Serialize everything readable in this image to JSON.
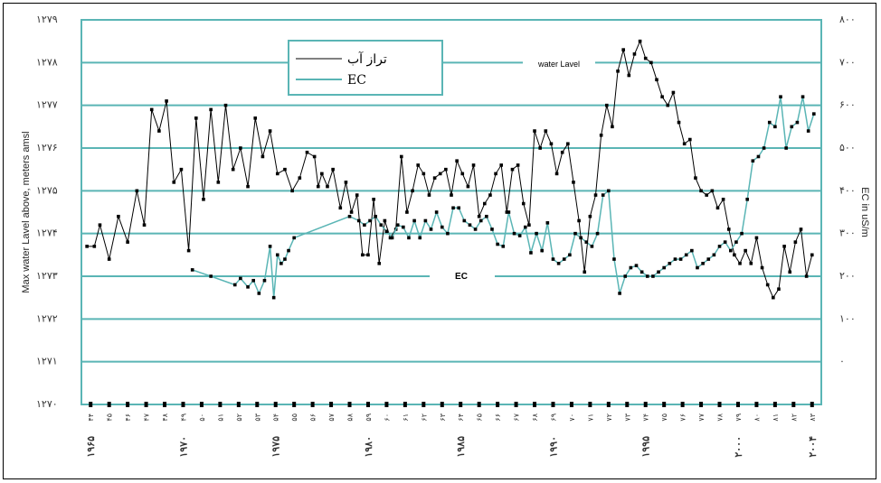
{
  "chart_data": {
    "type": "line",
    "left_axis": {
      "label": "Max water Lavel above, meters amsl",
      "ticks": [
        "۱۲۷۰",
        "۱۲۷۱",
        "۱۲۷۲",
        "۱۲۷۳",
        "۱۲۷۴",
        "۱۲۷۵",
        "۱۲۷۶",
        "۱۲۷۷",
        "۱۲۷۸",
        "۱۲۷۹"
      ],
      "ylim": [
        1270,
        1279
      ]
    },
    "right_axis": {
      "label": "EC in uS/m",
      "ticks": [
        "۰",
        "۱۰۰",
        "۲۰۰",
        "۳۰۰",
        "۴۰۰",
        "۵۰۰",
        "۶۰۰",
        "۷۰۰",
        "۸۰۰"
      ],
      "ylim": [
        -100,
        800
      ]
    },
    "x_small_ticks": [
      "۴۴",
      "۴۵",
      "۴۶",
      "۴۷",
      "۴۸",
      "۴۹",
      "۵۰",
      "۵۱",
      "۵۲",
      "۵۳",
      "۵۴",
      "۵۵",
      "۵۶",
      "۵۷",
      "۵۸",
      "۵۹",
      "۶۰",
      "۶۱",
      "۶۲",
      "۶۳",
      "۶۴",
      "۶۵",
      "۶۶",
      "۶۷",
      "۶۸",
      "۶۹",
      "۷۰",
      "۷۱",
      "۷۲",
      "۷۳",
      "۷۴",
      "۷۵",
      "۷۶",
      "۷۷",
      "۷۸",
      "۷۹",
      "۸۰",
      "۸۱",
      "۸۲",
      "۸۳"
    ],
    "x_year_labels": [
      {
        "year": 1965,
        "label": "۱۹۶۵"
      },
      {
        "year": 1970,
        "label": "۱۹۷۰"
      },
      {
        "year": 1975,
        "label": "۱۹۷۵"
      },
      {
        "year": 1980,
        "label": "۱۹۸۰"
      },
      {
        "year": 1985,
        "label": "۱۹۸۵"
      },
      {
        "year": 1990,
        "label": "۱۹۹۰"
      },
      {
        "year": 1995,
        "label": "۱۹۹۵"
      },
      {
        "year": 2000,
        "label": "۲۰۰۰"
      },
      {
        "year": 2004,
        "label": "۲۰۰۴"
      }
    ],
    "xlim": [
      1965,
      2005
    ],
    "grid": true,
    "legend_position": "top-center",
    "annotations": {
      "water_level": "water Lavel",
      "ec": "EC"
    },
    "series": [
      {
        "name": "تراز آب",
        "color": "#000000",
        "axis": "left",
        "x": [
          1965.3,
          1965.7,
          1966.0,
          1966.5,
          1967.0,
          1967.5,
          1968.0,
          1968.4,
          1968.8,
          1969.2,
          1969.6,
          1970.0,
          1970.4,
          1970.8,
          1971.2,
          1971.6,
          1972.0,
          1972.4,
          1972.8,
          1973.2,
          1973.6,
          1974.0,
          1974.4,
          1974.8,
          1975.2,
          1975.6,
          1976.0,
          1976.4,
          1976.8,
          1977.2,
          1977.6,
          1977.8,
          1978.0,
          1978.3,
          1978.6,
          1979.0,
          1979.3,
          1979.6,
          1979.9,
          1980.2,
          1980.5,
          1980.8,
          1981.1,
          1981.4,
          1981.7,
          1982.0,
          1982.3,
          1982.6,
          1982.9,
          1983.2,
          1983.5,
          1983.8,
          1984.1,
          1984.4,
          1984.7,
          1985.0,
          1985.3,
          1985.6,
          1985.9,
          1986.2,
          1986.5,
          1986.8,
          1987.1,
          1987.4,
          1987.7,
          1988.0,
          1988.3,
          1988.6,
          1988.9,
          1989.2,
          1989.5,
          1989.8,
          1990.1,
          1990.4,
          1990.7,
          1991.0,
          1991.3,
          1991.6,
          1991.9,
          1992.2,
          1992.5,
          1992.8,
          1993.1,
          1993.4,
          1993.7,
          1994.0,
          1994.3,
          1994.6,
          1994.9,
          1995.2,
          1995.5,
          1995.8,
          1996.1,
          1996.4,
          1996.7,
          1997.0,
          1997.3,
          1997.6,
          1997.9,
          1998.2,
          1998.5,
          1998.8,
          1999.1,
          1999.4,
          1999.7,
          2000.0,
          2000.3,
          2000.6,
          2000.9,
          2001.2,
          2001.5,
          2001.8,
          2002.1,
          2002.4,
          2002.7,
          2003.0,
          2003.3,
          2003.6,
          2003.9,
          2004.2,
          2004.5
        ],
        "y": [
          1273.7,
          1273.7,
          1274.2,
          1273.4,
          1274.4,
          1273.8,
          1275.0,
          1274.2,
          1276.9,
          1276.4,
          1277.1,
          1275.2,
          1275.5,
          1273.6,
          1276.7,
          1274.8,
          1276.9,
          1275.2,
          1277.0,
          1275.5,
          1276.0,
          1275.1,
          1276.7,
          1275.8,
          1276.4,
          1275.4,
          1275.5,
          1275.0,
          1275.3,
          1275.9,
          1275.8,
          1275.1,
          1275.4,
          1275.1,
          1275.5,
          1274.6,
          1275.2,
          1274.5,
          1274.9,
          1273.5,
          1273.5,
          1274.8,
          1273.3,
          1274.3,
          1273.9,
          1274.1,
          1275.8,
          1274.5,
          1275.0,
          1275.6,
          1275.4,
          1274.9,
          1275.3,
          1275.4,
          1275.5,
          1274.9,
          1275.7,
          1275.4,
          1275.1,
          1275.6,
          1274.4,
          1274.7,
          1274.9,
          1275.4,
          1275.6,
          1274.5,
          1275.5,
          1275.6,
          1274.7,
          1274.2,
          1276.4,
          1276.0,
          1276.4,
          1276.1,
          1275.4,
          1275.9,
          1276.1,
          1275.2,
          1274.3,
          1273.1,
          1274.4,
          1274.9,
          1276.3,
          1277.0,
          1276.5,
          1277.8,
          1278.3,
          1277.7,
          1278.2,
          1278.5,
          1278.1,
          1278.0,
          1277.6,
          1277.2,
          1277.0,
          1277.3,
          1276.6,
          1276.1,
          1276.2,
          1275.3,
          1275.0,
          1274.9,
          1275.0,
          1274.6,
          1274.8,
          1274.1,
          1273.5,
          1273.3,
          1273.6,
          1273.3,
          1273.9,
          1273.2,
          1272.8,
          1272.5,
          1272.7,
          1273.7,
          1273.1,
          1273.8,
          1274.1,
          1273.0,
          1273.5
        ],
        "note": "left_axis values in meters; estimated from gridlines"
      },
      {
        "name": "EC",
        "color": "#5ab5b5",
        "axis": "right",
        "x": [
          1971.0,
          1972.0,
          1973.3,
          1973.6,
          1974.0,
          1974.3,
          1974.6,
          1974.9,
          1975.2,
          1975.4,
          1975.6,
          1975.8,
          1976.0,
          1976.2,
          1976.5,
          1979.5,
          1980.0,
          1980.3,
          1980.6,
          1980.9,
          1981.2,
          1981.5,
          1981.8,
          1982.1,
          1982.4,
          1982.7,
          1983.0,
          1983.3,
          1983.6,
          1983.9,
          1984.2,
          1984.5,
          1984.8,
          1985.1,
          1985.4,
          1985.7,
          1986.0,
          1986.3,
          1986.6,
          1986.9,
          1987.2,
          1987.5,
          1987.8,
          1988.1,
          1988.4,
          1988.7,
          1989.0,
          1989.3,
          1989.6,
          1989.9,
          1990.2,
          1990.5,
          1990.8,
          1991.1,
          1991.4,
          1991.7,
          1992.0,
          1992.3,
          1992.6,
          1992.9,
          1993.2,
          1993.5,
          1993.8,
          1994.1,
          1994.4,
          1994.7,
          1995.0,
          1995.3,
          1995.6,
          1995.9,
          1996.2,
          1996.5,
          1996.8,
          1997.1,
          1997.4,
          1997.7,
          1998.0,
          1998.3,
          1998.6,
          1998.9,
          1999.2,
          1999.5,
          1999.8,
          2000.1,
          2000.4,
          2000.7,
          2001.0,
          2001.3,
          2001.6,
          2001.9,
          2002.2,
          2002.5,
          2002.8,
          2003.1,
          2003.4,
          2003.7,
          2004.0,
          2004.3,
          2004.6
        ],
        "y": [
          215,
          200,
          180,
          195,
          175,
          190,
          160,
          190,
          270,
          150,
          250,
          230,
          240,
          260,
          290,
          340,
          330,
          320,
          330,
          340,
          320,
          305,
          290,
          320,
          315,
          290,
          330,
          290,
          330,
          310,
          350,
          315,
          300,
          360,
          360,
          330,
          320,
          310,
          330,
          340,
          310,
          275,
          270,
          350,
          300,
          295,
          315,
          255,
          300,
          260,
          325,
          240,
          230,
          240,
          250,
          300,
          290,
          280,
          270,
          300,
          390,
          400,
          240,
          160,
          200,
          220,
          225,
          210,
          200,
          200,
          210,
          220,
          230,
          240,
          240,
          250,
          260,
          220,
          230,
          240,
          250,
          270,
          280,
          260,
          280,
          300,
          380,
          470,
          480,
          500,
          560,
          550,
          620,
          500,
          550,
          560,
          620,
          540,
          580
        ],
        "note": "right_axis values; estimated from gridlines"
      }
    ]
  }
}
